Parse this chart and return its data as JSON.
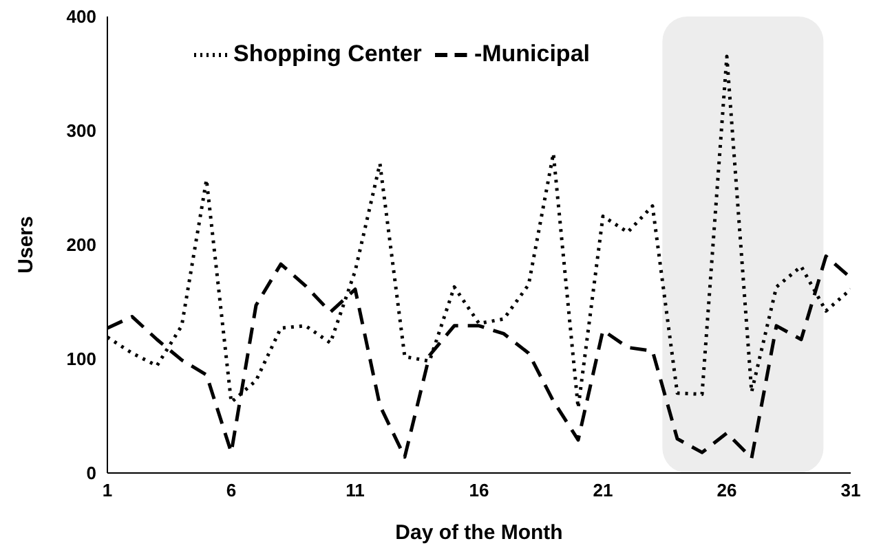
{
  "chart_data": {
    "type": "line",
    "xlabel": "Day of the Month",
    "ylabel": "Users",
    "x": [
      1,
      2,
      3,
      4,
      5,
      6,
      7,
      8,
      9,
      10,
      11,
      12,
      13,
      14,
      15,
      16,
      17,
      18,
      19,
      20,
      21,
      22,
      23,
      24,
      25,
      26,
      27,
      28,
      29,
      30,
      31
    ],
    "xlim": [
      1,
      31
    ],
    "xticks": [
      1,
      6,
      11,
      16,
      21,
      26,
      31
    ],
    "ylim": [
      0,
      400
    ],
    "yticks": [
      0,
      100,
      200,
      300,
      400
    ],
    "legend": "top",
    "marker": "none",
    "series": [
      {
        "name": "Shopping Center",
        "color": "#000000",
        "line_style": "dotted",
        "values": [
          119,
          105,
          94,
          129,
          257,
          62,
          81,
          127,
          129,
          114,
          177,
          271,
          102,
          98,
          163,
          131,
          135,
          165,
          280,
          57,
          225,
          211,
          234,
          70,
          69,
          365,
          71,
          163,
          181,
          142,
          161
        ]
      },
      {
        "name": "-Municipal",
        "color": "#000000",
        "line_style": "dashed",
        "values": [
          127,
          137,
          117,
          99,
          86,
          18,
          147,
          183,
          164,
          141,
          161,
          59,
          14,
          103,
          129,
          129,
          122,
          105,
          63,
          29,
          125,
          110,
          107,
          30,
          18,
          35,
          13,
          129,
          117,
          190,
          171
        ]
      }
    ],
    "bands": [
      {
        "axis": "x",
        "from": 23.4,
        "to": 29.9,
        "color": "#ededed"
      }
    ]
  }
}
